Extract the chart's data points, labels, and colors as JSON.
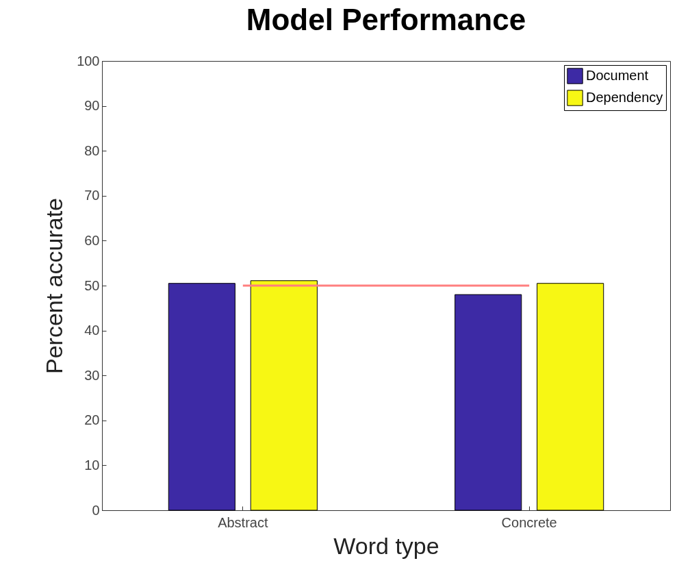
{
  "chart_data": {
    "type": "bar",
    "title": "Model Performance",
    "xlabel": "Word type",
    "ylabel": "Percent accurate",
    "categories": [
      "Abstract",
      "Concrete"
    ],
    "series": [
      {
        "name": "Document",
        "color": "#3d2aa5",
        "values": [
          50.5,
          48.0
        ]
      },
      {
        "name": "Dependency",
        "color": "#f7f714",
        "values": [
          51.1,
          50.5
        ]
      }
    ],
    "ylim": [
      0,
      100
    ],
    "yticks": [
      0,
      10,
      20,
      30,
      40,
      50,
      60,
      70,
      80,
      90,
      100
    ],
    "grid": false,
    "legend": "top right",
    "ref_lines": [
      {
        "axis": "y",
        "value": 50,
        "color": "#ff7f7f"
      }
    ]
  }
}
